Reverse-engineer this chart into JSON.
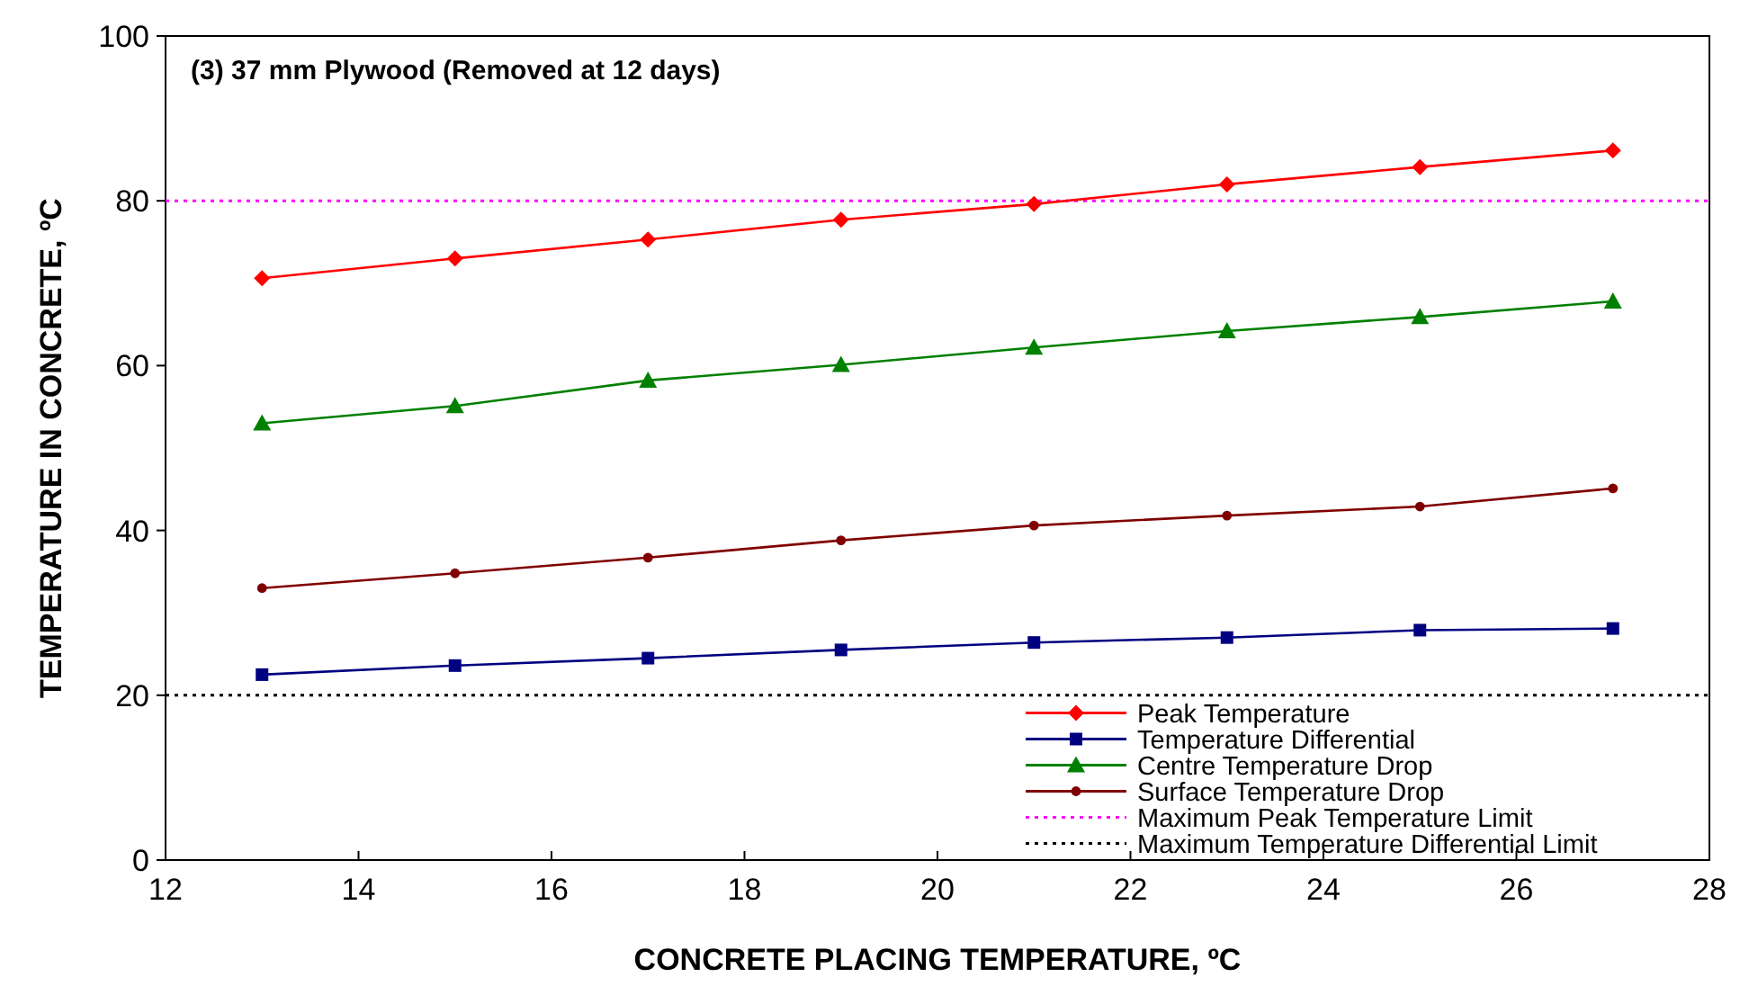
{
  "chart_data": {
    "type": "line",
    "title": "(3) 37 mm Plywood (Removed at 12 days)",
    "xlabel": "CONCRETE PLACING TEMPERATURE, ºC",
    "ylabel": "TEMPERATURE IN CONCRETE, ºC",
    "x": [
      13,
      15,
      17,
      19,
      21,
      23,
      25,
      27
    ],
    "series": [
      {
        "name": "Peak Temperature",
        "color": "#ff0000",
        "marker": "diamond",
        "values": [
          70.6,
          73.0,
          75.3,
          77.7,
          79.6,
          82.0,
          84.1,
          86.1
        ]
      },
      {
        "name": "Temperature Differential",
        "color": "#000080",
        "marker": "square",
        "values": [
          22.5,
          23.6,
          24.5,
          25.5,
          26.4,
          27.0,
          27.9,
          28.1
        ]
      },
      {
        "name": "Centre Temperature Drop",
        "color": "#008000",
        "marker": "triangle",
        "values": [
          53.0,
          55.1,
          58.2,
          60.1,
          62.2,
          64.2,
          65.9,
          67.8
        ]
      },
      {
        "name": "Surface Temperature Drop",
        "color": "#800000",
        "marker": "circle",
        "values": [
          33.0,
          34.8,
          36.7,
          38.8,
          40.6,
          41.8,
          42.9,
          45.1
        ]
      }
    ],
    "ref_lines": [
      {
        "axis": "y",
        "value": 80,
        "label": "Maximum Peak Temperature Limit",
        "color": "#ff00ff",
        "line_style": "dotted"
      },
      {
        "axis": "y",
        "value": 20,
        "label": "Maximum Temperature Differential Limit",
        "color": "#000000",
        "line_style": "dotted"
      }
    ],
    "xlim": [
      12,
      28
    ],
    "xticks": [
      12,
      14,
      16,
      18,
      20,
      22,
      24,
      26,
      28
    ],
    "ylim": [
      0,
      100
    ],
    "yticks": [
      0,
      20,
      40,
      60,
      80,
      100
    ],
    "grid": false,
    "legend": "bottom right",
    "line_style": "solid"
  }
}
